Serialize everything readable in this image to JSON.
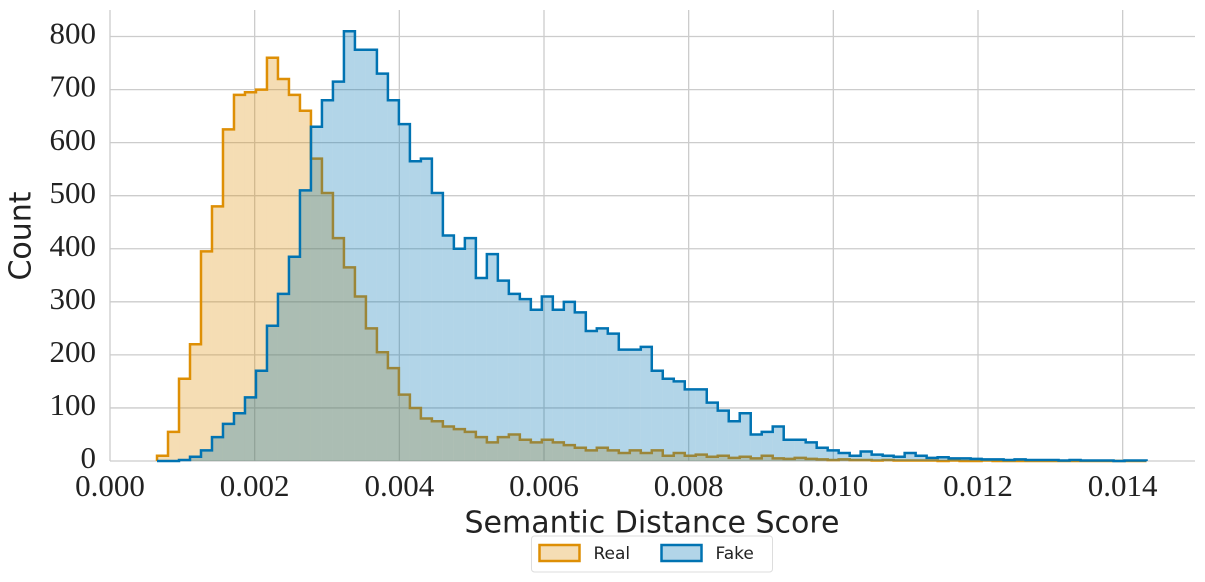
{
  "chart_data": {
    "type": "histogram",
    "xlabel": "Semantic Distance Score",
    "ylabel": "Count",
    "bins": [
      0.00065,
      0.000802,
      0.000954,
      0.001106,
      0.001258,
      0.00141,
      0.001562,
      0.001714,
      0.001866,
      0.002018,
      0.00217,
      0.002322,
      0.002474,
      0.002626,
      0.002778,
      0.00293,
      0.003082,
      0.003234,
      0.003386,
      0.003538,
      0.00369,
      0.003842,
      0.003994,
      0.004146,
      0.004298,
      0.00445,
      0.004602,
      0.004754,
      0.004906,
      0.005058,
      0.00521,
      0.005362,
      0.005514,
      0.005666,
      0.005818,
      0.00597,
      0.006122,
      0.006274,
      0.006426,
      0.006578,
      0.00673,
      0.006882,
      0.007034,
      0.007186,
      0.007338,
      0.00749,
      0.007642,
      0.007794,
      0.007946,
      0.008098,
      0.00825,
      0.008402,
      0.008554,
      0.008706,
      0.008858,
      0.00901,
      0.009162,
      0.009314,
      0.009466,
      0.009618,
      0.00977,
      0.009922,
      0.010074,
      0.010226,
      0.010378,
      0.01053,
      0.010682,
      0.010834,
      0.010986,
      0.011138,
      0.01129,
      0.011442,
      0.011594,
      0.011746,
      0.011898,
      0.01205,
      0.012202,
      0.012354,
      0.012506,
      0.012658,
      0.01281,
      0.012962,
      0.013114,
      0.013266,
      0.013418,
      0.01357,
      0.013722,
      0.013874,
      0.014026,
      0.014178,
      0.01433
    ],
    "series": [
      {
        "name": "Real",
        "color": "#de8f05",
        "values": [
          10,
          55,
          155,
          220,
          395,
          480,
          625,
          690,
          695,
          700,
          760,
          720,
          690,
          660,
          570,
          505,
          420,
          365,
          310,
          250,
          205,
          175,
          125,
          100,
          80,
          75,
          65,
          60,
          55,
          45,
          35,
          45,
          50,
          40,
          35,
          40,
          35,
          30,
          25,
          20,
          25,
          20,
          15,
          20,
          15,
          20,
          10,
          15,
          10,
          12,
          8,
          10,
          6,
          8,
          5,
          10,
          5,
          4,
          6,
          4,
          3,
          2,
          3,
          2,
          2,
          1,
          2,
          1,
          1,
          1,
          1,
          0,
          1,
          0,
          0,
          1,
          0,
          0,
          0,
          0,
          0,
          0,
          0,
          0,
          0,
          0,
          0,
          0,
          0,
          0
        ]
      },
      {
        "name": "Fake",
        "color": "#0173b2",
        "values": [
          0,
          0,
          2,
          8,
          20,
          45,
          70,
          90,
          120,
          170,
          255,
          315,
          385,
          510,
          630,
          680,
          715,
          810,
          775,
          775,
          730,
          680,
          635,
          565,
          570,
          505,
          425,
          400,
          420,
          345,
          390,
          340,
          315,
          305,
          285,
          310,
          285,
          300,
          280,
          245,
          250,
          240,
          210,
          210,
          215,
          170,
          155,
          150,
          135,
          135,
          110,
          95,
          75,
          90,
          50,
          55,
          65,
          40,
          40,
          35,
          25,
          20,
          15,
          10,
          18,
          12,
          10,
          8,
          15,
          10,
          6,
          7,
          5,
          5,
          4,
          3,
          3,
          2,
          3,
          2,
          2,
          2,
          1,
          2,
          1,
          1,
          1,
          0,
          1,
          1
        ]
      }
    ],
    "xlim": [
      0,
      0.015
    ],
    "ylim": [
      0,
      850
    ],
    "xticks": [
      {
        "value": 0,
        "label": "0.000"
      },
      {
        "value": 0.002,
        "label": "0.002"
      },
      {
        "value": 0.004,
        "label": "0.004"
      },
      {
        "value": 0.006,
        "label": "0.006"
      },
      {
        "value": 0.008,
        "label": "0.008"
      },
      {
        "value": 0.01,
        "label": "0.010"
      },
      {
        "value": 0.012,
        "label": "0.012"
      },
      {
        "value": 0.014,
        "label": "0.014"
      }
    ],
    "yticks": [
      0,
      100,
      200,
      300,
      400,
      500,
      600,
      700,
      800
    ],
    "grid": true,
    "legend": "bottom"
  }
}
